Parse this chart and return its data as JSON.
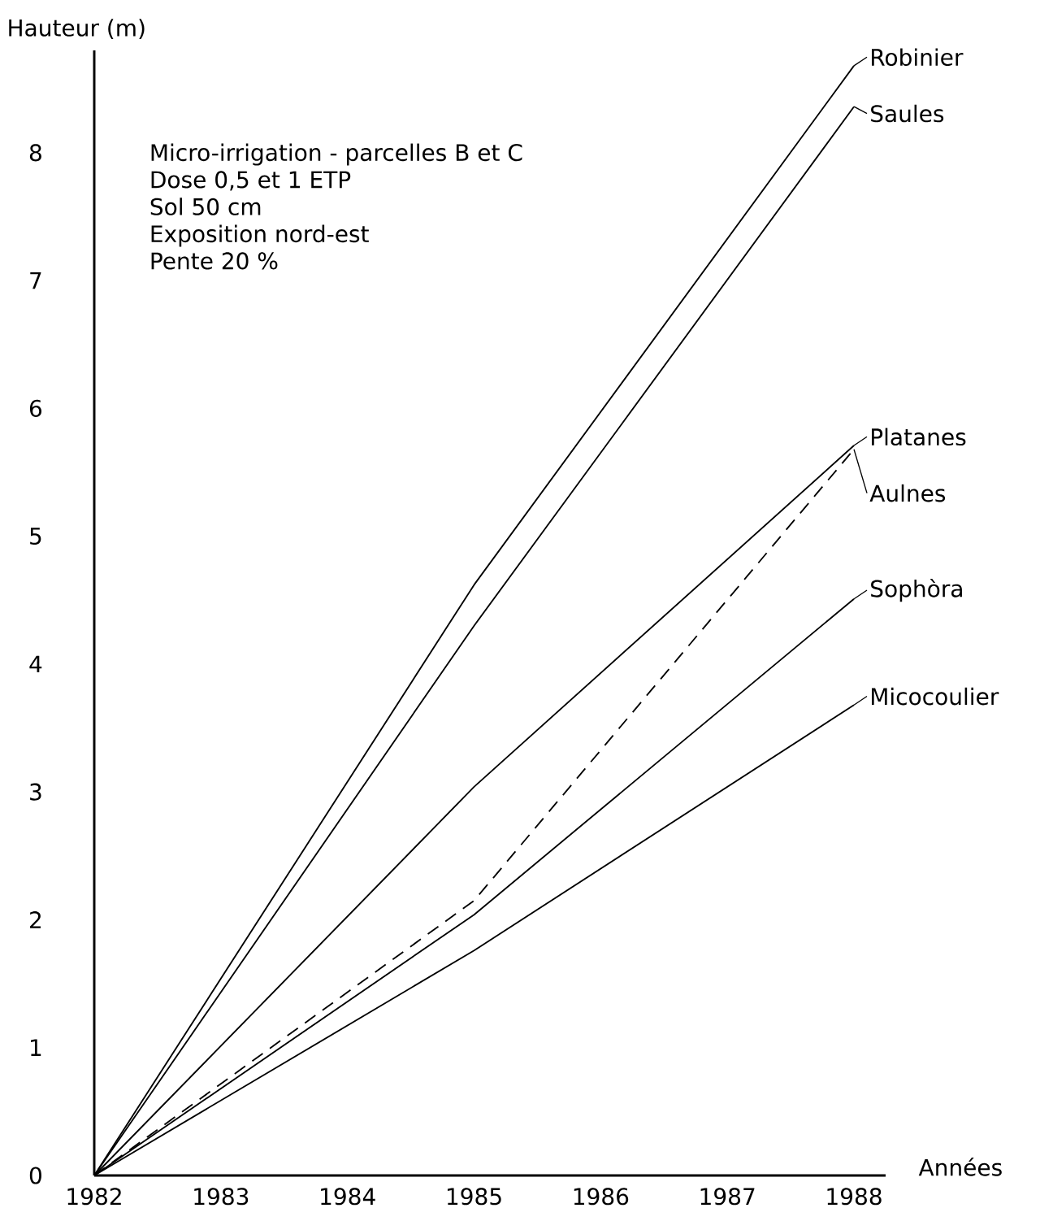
{
  "chart_data": {
    "type": "line",
    "xlabel": "Années",
    "ylabel": "Hauteur (m)",
    "annotations": [
      "Micro-irrigation - parcelles B et C",
      "Dose 0,5 et 1 ETP",
      "Sol 50 cm",
      "Exposition nord-est",
      "Pente 20 %"
    ],
    "x": [
      1982,
      1985,
      1988
    ],
    "series": [
      {
        "name": "Robinier",
        "color": "#000000",
        "values": [
          0,
          4.62,
          8.68
        ]
      },
      {
        "name": "Saules",
        "color": "#000000",
        "values": [
          0,
          4.3,
          8.36
        ]
      },
      {
        "name": "Platanes",
        "color": "#000000",
        "values": [
          0,
          3.04,
          5.71
        ]
      },
      {
        "name": "Aulnes",
        "color": "#000000",
        "line_style": "dashed",
        "values": [
          0,
          2.15,
          5.68
        ]
      },
      {
        "name": "Sophòra",
        "color": "#000000",
        "values": [
          0,
          2.04,
          4.51
        ]
      },
      {
        "name": "Micocoulier",
        "color": "#000000",
        "values": [
          0,
          1.76,
          3.68
        ]
      }
    ],
    "xlim": [
      1982,
      1988.25
    ],
    "ylim": [
      0,
      8.8
    ],
    "xticks": [
      1982,
      1983,
      1984,
      1985,
      1986,
      1987,
      1988
    ],
    "yticks": [
      0,
      1,
      2,
      3,
      4,
      5,
      6,
      7,
      8
    ],
    "grid": false,
    "legend": "right",
    "marker": "none",
    "line_style": "solid"
  }
}
